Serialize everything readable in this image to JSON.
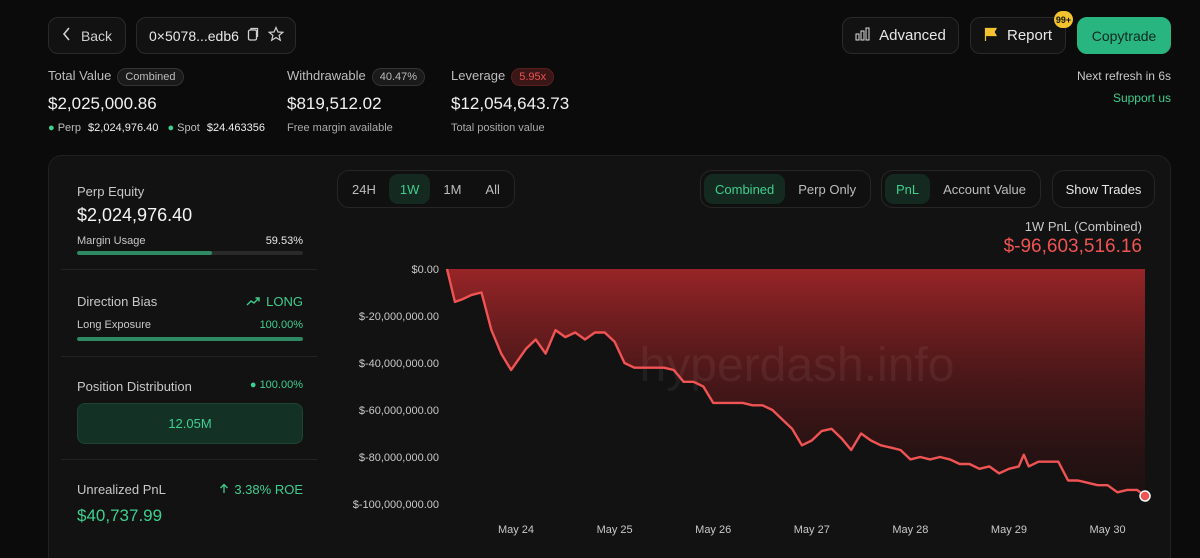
{
  "header": {
    "back_label": "Back",
    "address": "0×5078...edb6",
    "advanced_label": "Advanced",
    "report_label": "Report",
    "report_badge": "99+",
    "copytrade_label": "Copytrade",
    "next_refresh": "Next refresh in 6s",
    "support": "Support us"
  },
  "stats": {
    "total_value": {
      "label": "Total Value",
      "badge": "Combined",
      "value": "$2,025,000.86",
      "perp_label": "Perp",
      "perp_value": "$2,024,976.40",
      "spot_label": "Spot",
      "spot_value": "$24.463356"
    },
    "withdrawable": {
      "label": "Withdrawable",
      "badge": "40.47%",
      "value": "$819,512.02",
      "sub": "Free margin available"
    },
    "leverage": {
      "label": "Leverage",
      "badge": "5.95x",
      "value": "$12,054,643.73",
      "sub": "Total position value"
    }
  },
  "left": {
    "perp_equity_label": "Perp Equity",
    "perp_equity_value": "$2,024,976.40",
    "margin_usage_label": "Margin Usage",
    "margin_usage_value": "59.53%",
    "margin_usage_fraction": 0.5953,
    "direction_bias_label": "Direction Bias",
    "direction_value": "LONG",
    "long_exposure_label": "Long Exposure",
    "long_exposure_value": "100.00%",
    "long_exposure_fraction": 1.0,
    "position_dist_label": "Position Distribution",
    "position_dist_value": "100.00%",
    "position_box": "12.05M",
    "unrealized_label": "Unrealized PnL",
    "roe": "3.38% ROE",
    "unrealized_value": "$40,737.99"
  },
  "tabs": {
    "range": [
      "24H",
      "1W",
      "1M",
      "All"
    ],
    "range_active": 1,
    "mode": [
      "Combined",
      "Perp Only"
    ],
    "mode_active": 0,
    "metric": [
      "PnL",
      "Account Value"
    ],
    "metric_active": 0,
    "show_trades": "Show Trades"
  },
  "chart_data": {
    "type": "area",
    "title": "1W PnL (Combined)",
    "headline_value": "$-96,603,516.16",
    "watermark": "hyperdash.info",
    "color": "#f05353",
    "x_tick_labels": [
      "May 24",
      "May 25",
      "May 26",
      "May 27",
      "May 28",
      "May 29",
      "May 30"
    ],
    "y_tick_labels": [
      "$0.00",
      "$-20,000,000.00",
      "$-40,000,000.00",
      "$-60,000,000.00",
      "$-80,000,000.00",
      "$-100,000,000.00"
    ],
    "ylim": [
      -100000000,
      0
    ],
    "x_start_day": 23.3,
    "x_end_day": 30.4,
    "series": [
      {
        "x": [
          23.3,
          23.38,
          23.45,
          23.55,
          23.65,
          23.75,
          23.85,
          23.95,
          24.0,
          24.1,
          24.2,
          24.3,
          24.4,
          24.5,
          24.6,
          24.7,
          24.8,
          24.9,
          25.0,
          25.1,
          25.2,
          25.3,
          25.4,
          25.5,
          25.6,
          25.7,
          25.8,
          25.9,
          26.0,
          26.1,
          26.2,
          26.3,
          26.4,
          26.5,
          26.6,
          26.7,
          26.8,
          26.9,
          27.0,
          27.1,
          27.2,
          27.3,
          27.4,
          27.5,
          27.6,
          27.7,
          27.8,
          27.9,
          28.0,
          28.1,
          28.2,
          28.3,
          28.4,
          28.5,
          28.6,
          28.7,
          28.8,
          28.9,
          29.0,
          29.1,
          29.15,
          29.2,
          29.3,
          29.4,
          29.5,
          29.6,
          29.7,
          29.8,
          29.9,
          30.0,
          30.1,
          30.2,
          30.3,
          30.38
        ],
        "y": [
          0,
          -14000000,
          -13000000,
          -11000000,
          -10000000,
          -26000000,
          -36000000,
          -43000000,
          -40000000,
          -34000000,
          -30000000,
          -36000000,
          -26000000,
          -29000000,
          -27000000,
          -30000000,
          -27000000,
          -27000000,
          -31000000,
          -40000000,
          -42000000,
          -42000000,
          -42000000,
          -42000000,
          -43000000,
          -48000000,
          -48000000,
          -50000000,
          -57000000,
          -57000000,
          -57000000,
          -57000000,
          -58000000,
          -58000000,
          -60000000,
          -64000000,
          -68000000,
          -75000000,
          -73000000,
          -69000000,
          -68000000,
          -72000000,
          -77000000,
          -70000000,
          -73000000,
          -75000000,
          -76000000,
          -77000000,
          -81000000,
          -80000000,
          -81000000,
          -80000000,
          -81000000,
          -83000000,
          -83000000,
          -85000000,
          -84000000,
          -87000000,
          -85000000,
          -84000000,
          -79000000,
          -84000000,
          -82000000,
          -82000000,
          -82000000,
          -90000000,
          -90000000,
          -91000000,
          -92000000,
          -92000000,
          -95000000,
          -94000000,
          -94000000,
          -96600000
        ]
      }
    ]
  }
}
